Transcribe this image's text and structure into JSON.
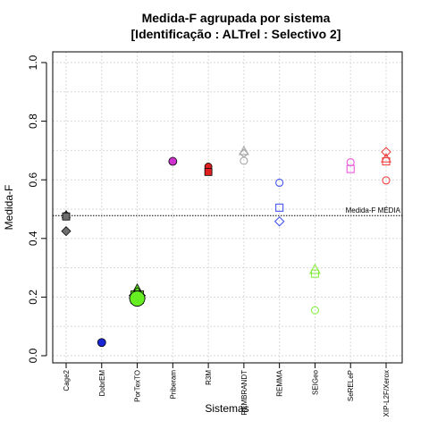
{
  "chart_data": {
    "type": "scatter",
    "title": "Medida-F agrupada por sistema",
    "subtitle": "[Identificação : ALTrel : Selectivo 2]",
    "xlabel": "Sistemas",
    "ylabel": "Medida-F",
    "ylim": [
      0,
      1
    ],
    "yticks": [
      "0.0",
      "0.2",
      "0.4",
      "0.6",
      "0.8",
      "1.0"
    ],
    "grid": true,
    "categories": [
      "Cage2",
      "DobrEM",
      "PorTexTO",
      "Priberam",
      "R3M",
      "REMBRANDT",
      "REMMA",
      "SEIGeo",
      "SeRELeP",
      "XIP-L2F/Xerox"
    ],
    "reference_line": {
      "label": "Medida-F MÉDIA",
      "value": 0.478
    },
    "points": [
      {
        "category": "Cage2",
        "y": 0.478,
        "shape": "circle",
        "color": "#6e6e6e",
        "filled": true,
        "size": 4
      },
      {
        "category": "Cage2",
        "y": 0.48,
        "shape": "triangle",
        "color": "#6e6e6e",
        "filled": true,
        "size": 4
      },
      {
        "category": "Cage2",
        "y": 0.475,
        "shape": "square",
        "color": "#6e6e6e",
        "filled": true,
        "size": 4
      },
      {
        "category": "Cage2",
        "y": 0.425,
        "shape": "diamond",
        "color": "#6e6e6e",
        "filled": true,
        "size": 5
      },
      {
        "category": "DobrEM",
        "y": 0.045,
        "shape": "circle",
        "color": "#1a25d6",
        "filled": true,
        "size": 4.5
      },
      {
        "category": "PorTexTO",
        "y": 0.215,
        "shape": "triangle",
        "color": "#66ee22",
        "filled": true,
        "size": 8
      },
      {
        "category": "PorTexTO",
        "y": 0.205,
        "shape": "diamond",
        "color": "#66ee22",
        "filled": true,
        "size": 9
      },
      {
        "category": "PorTexTO",
        "y": 0.2,
        "shape": "square",
        "color": "#66ee22",
        "filled": true,
        "size": 7
      },
      {
        "category": "PorTexTO",
        "y": 0.195,
        "shape": "circle",
        "color": "#66ee22",
        "filled": true,
        "size": 8.5
      },
      {
        "category": "Priberam",
        "y": 0.663,
        "shape": "circle",
        "color": "#cc33cc",
        "filled": true,
        "size": 4.5
      },
      {
        "category": "R3M",
        "y": 0.645,
        "shape": "circle",
        "color": "#e02020",
        "filled": true,
        "size": 4
      },
      {
        "category": "R3M",
        "y": 0.627,
        "shape": "square",
        "color": "#e02020",
        "filled": true,
        "size": 4
      },
      {
        "category": "REMBRANDT",
        "y": 0.697,
        "shape": "triangle",
        "color": "#a6a6a6",
        "filled": false,
        "size": 4.5
      },
      {
        "category": "REMBRANDT",
        "y": 0.69,
        "shape": "diamond",
        "color": "#a6a6a6",
        "filled": false,
        "size": 4.5
      },
      {
        "category": "REMBRANDT",
        "y": 0.665,
        "shape": "circle",
        "color": "#a6a6a6",
        "filled": false,
        "size": 4
      },
      {
        "category": "REMMA",
        "y": 0.59,
        "shape": "circle",
        "color": "#4455ee",
        "filled": false,
        "size": 4
      },
      {
        "category": "REMMA",
        "y": 0.505,
        "shape": "square",
        "color": "#4455ee",
        "filled": false,
        "size": 4
      },
      {
        "category": "REMMA",
        "y": 0.458,
        "shape": "diamond",
        "color": "#4455ee",
        "filled": false,
        "size": 5
      },
      {
        "category": "SEIGeo",
        "y": 0.293,
        "shape": "triangle",
        "color": "#88ee44",
        "filled": false,
        "size": 5
      },
      {
        "category": "SEIGeo",
        "y": 0.28,
        "shape": "square",
        "color": "#88ee44",
        "filled": false,
        "size": 4
      },
      {
        "category": "SEIGeo",
        "y": 0.155,
        "shape": "circle",
        "color": "#88ee44",
        "filled": false,
        "size": 4
      },
      {
        "category": "SeRELeP",
        "y": 0.66,
        "shape": "circle",
        "color": "#ee55dd",
        "filled": false,
        "size": 4
      },
      {
        "category": "SeRELeP",
        "y": 0.637,
        "shape": "square",
        "color": "#ee55dd",
        "filled": false,
        "size": 4
      },
      {
        "category": "XIP-L2F/Xerox",
        "y": 0.695,
        "shape": "diamond",
        "color": "#ee4444",
        "filled": false,
        "size": 5
      },
      {
        "category": "XIP-L2F/Xerox",
        "y": 0.672,
        "shape": "triangle",
        "color": "#ee4444",
        "filled": false,
        "size": 4.5
      },
      {
        "category": "XIP-L2F/Xerox",
        "y": 0.663,
        "shape": "square",
        "color": "#ee4444",
        "filled": false,
        "size": 4
      },
      {
        "category": "XIP-L2F/Xerox",
        "y": 0.598,
        "shape": "circle",
        "color": "#ee4444",
        "filled": false,
        "size": 4
      }
    ]
  }
}
